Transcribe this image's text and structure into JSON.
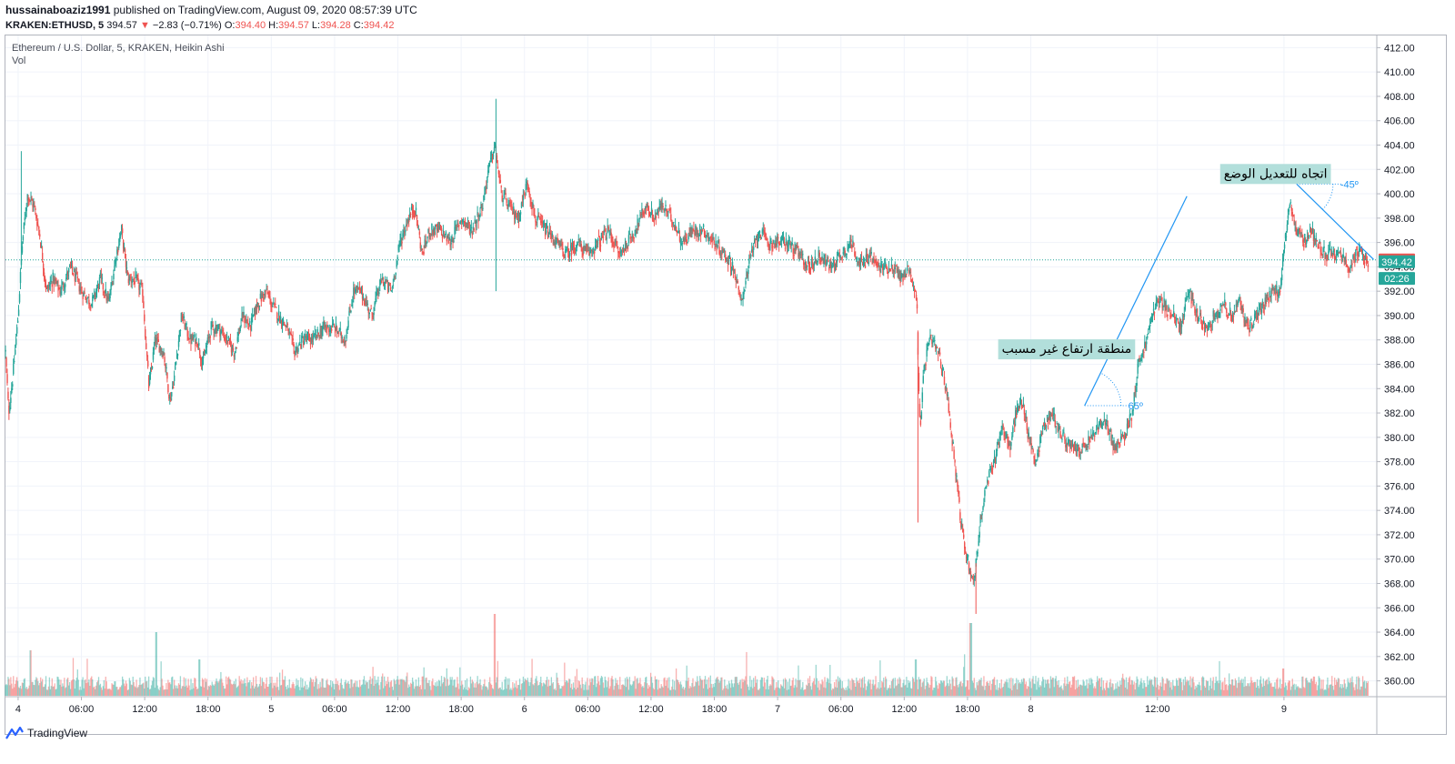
{
  "header": {
    "user": "hussainaboaziz1991",
    "published": "published on TradingView.com, August 09, 2020 08:57:39 UTC",
    "symbol": "KRAKEN:ETHUSD, 5",
    "last": "394.57",
    "arrow": "▼",
    "change": "−2.83 (−0.71%)",
    "o_label": "O:",
    "o_value": "394.40",
    "h_label": "H:",
    "h_value": "394.57",
    "l_label": "L:",
    "l_value": "394.28",
    "c_label": "C:",
    "c_value": "394.42"
  },
  "series_label": {
    "title": "Ethereum / U.S. Dollar, 5, KRAKEN, Heikin Ashi",
    "vol": "Vol"
  },
  "footer": {
    "brand": "TradingView"
  },
  "colors": {
    "up": "#26a69a",
    "down": "#ef5350",
    "line": "#2196f3",
    "note_bg": "#b2dfdb"
  },
  "chart_data": {
    "type": "candlestick",
    "ylim": [
      358.7,
      413
    ],
    "y_ticks": [
      "412.00",
      "410.00",
      "408.00",
      "406.00",
      "404.00",
      "402.00",
      "400.00",
      "398.00",
      "396.00",
      "394.00",
      "392.00",
      "390.00",
      "388.00",
      "386.00",
      "384.00",
      "382.00",
      "380.00",
      "378.00",
      "376.00",
      "374.00",
      "372.00",
      "370.00",
      "368.00",
      "366.00",
      "364.00",
      "362.00",
      "360.00"
    ],
    "x_ticks": [
      {
        "label": "4",
        "t": 0
      },
      {
        "label": "06:00",
        "t": 6
      },
      {
        "label": "12:00",
        "t": 12
      },
      {
        "label": "18:00",
        "t": 18
      },
      {
        "label": "5",
        "t": 24
      },
      {
        "label": "06:00",
        "t": 30
      },
      {
        "label": "12:00",
        "t": 36
      },
      {
        "label": "18:00",
        "t": 42
      },
      {
        "label": "6",
        "t": 48
      },
      {
        "label": "06:00",
        "t": 54
      },
      {
        "label": "12:00",
        "t": 60
      },
      {
        "label": "18:00",
        "t": 66
      },
      {
        "label": "7",
        "t": 72
      },
      {
        "label": "06:00",
        "t": 78
      },
      {
        "label": "12:00",
        "t": 84
      },
      {
        "label": "18:00",
        "t": 90
      },
      {
        "label": "8",
        "t": 96
      },
      {
        "label": "12:00",
        "t": 108
      },
      {
        "label": "9",
        "t": 120
      }
    ],
    "x_range_hours": [
      -1.2,
      128.8
    ],
    "price_path": [
      [
        -1.2,
        387
      ],
      [
        -0.9,
        382
      ],
      [
        -0.5,
        385
      ],
      [
        0,
        390
      ],
      [
        0.4,
        396
      ],
      [
        0.9,
        400
      ],
      [
        1.5,
        399
      ],
      [
        2,
        397
      ],
      [
        2.7,
        392
      ],
      [
        3.3,
        393
      ],
      [
        4,
        392
      ],
      [
        5,
        394
      ],
      [
        6,
        392
      ],
      [
        7,
        391
      ],
      [
        7.8,
        393
      ],
      [
        8.6,
        391
      ],
      [
        9.3,
        395
      ],
      [
        9.8,
        397
      ],
      [
        10.4,
        393
      ],
      [
        11,
        393
      ],
      [
        11.8,
        392
      ],
      [
        12.4,
        384
      ],
      [
        13,
        388
      ],
      [
        13.8,
        387
      ],
      [
        14.4,
        383
      ],
      [
        14.8,
        385
      ],
      [
        15.5,
        390
      ],
      [
        16.3,
        388
      ],
      [
        17,
        388
      ],
      [
        17.5,
        386
      ],
      [
        18.3,
        389
      ],
      [
        19,
        389
      ],
      [
        19.8,
        388
      ],
      [
        20.5,
        387
      ],
      [
        21.3,
        390
      ],
      [
        22,
        389
      ],
      [
        22.7,
        391
      ],
      [
        23.5,
        392
      ],
      [
        24,
        391
      ],
      [
        24.7,
        390
      ],
      [
        25.5,
        389
      ],
      [
        26.2,
        387
      ],
      [
        27,
        388
      ],
      [
        28,
        388
      ],
      [
        29,
        389
      ],
      [
        30,
        389
      ],
      [
        31,
        388
      ],
      [
        31.8,
        392
      ],
      [
        32.5,
        392
      ],
      [
        33.5,
        390
      ],
      [
        34.5,
        393
      ],
      [
        35.4,
        392
      ],
      [
        36.2,
        396
      ],
      [
        37,
        398
      ],
      [
        37.6,
        399
      ],
      [
        38.3,
        395
      ],
      [
        39,
        397
      ],
      [
        40,
        397
      ],
      [
        41,
        396
      ],
      [
        42,
        398
      ],
      [
        43,
        397
      ],
      [
        44,
        399
      ],
      [
        44.6,
        402
      ],
      [
        45.2,
        404
      ],
      [
        45.8,
        400
      ],
      [
        46.5,
        399
      ],
      [
        47.4,
        398
      ],
      [
        48.3,
        401
      ],
      [
        49,
        398
      ],
      [
        50,
        397
      ],
      [
        51,
        396
      ],
      [
        52,
        395
      ],
      [
        53,
        396
      ],
      [
        54,
        395
      ],
      [
        55,
        396
      ],
      [
        56,
        397
      ],
      [
        57,
        395
      ],
      [
        57.8,
        396
      ],
      [
        58.5,
        397
      ],
      [
        59.5,
        399
      ],
      [
        60.3,
        398
      ],
      [
        61,
        399
      ],
      [
        62,
        398
      ],
      [
        63,
        396
      ],
      [
        64,
        397
      ],
      [
        65,
        397
      ],
      [
        66,
        396
      ],
      [
        67,
        395
      ],
      [
        67.8,
        394
      ],
      [
        68.5,
        391
      ],
      [
        69.5,
        395
      ],
      [
        70.3,
        397
      ],
      [
        71,
        396
      ],
      [
        72,
        396
      ],
      [
        73,
        396
      ],
      [
        74,
        395
      ],
      [
        75,
        394
      ],
      [
        76,
        395
      ],
      [
        77,
        394
      ],
      [
        78,
        395
      ],
      [
        79,
        396
      ],
      [
        80,
        394
      ],
      [
        80.7,
        395
      ],
      [
        81.5,
        394
      ],
      [
        82.3,
        394
      ],
      [
        83,
        394
      ],
      [
        83.8,
        393
      ],
      [
        84.5,
        394
      ],
      [
        85.2,
        391
      ],
      [
        85.5,
        380
      ],
      [
        85.9,
        386
      ],
      [
        86.5,
        388
      ],
      [
        87.2,
        387
      ],
      [
        88,
        384
      ],
      [
        88.8,
        378
      ],
      [
        89.5,
        372
      ],
      [
        90,
        370
      ],
      [
        90.6,
        368
      ],
      [
        91.2,
        373
      ],
      [
        91.8,
        376
      ],
      [
        92.5,
        378
      ],
      [
        93.3,
        381
      ],
      [
        94,
        379
      ],
      [
        94.6,
        382
      ],
      [
        95.2,
        383
      ],
      [
        95.8,
        380
      ],
      [
        96.5,
        378
      ],
      [
        97.2,
        381
      ],
      [
        98,
        382
      ],
      [
        99,
        380
      ],
      [
        100,
        379
      ],
      [
        101,
        379
      ],
      [
        101.8,
        380
      ],
      [
        102.5,
        381
      ],
      [
        103.3,
        381
      ],
      [
        104,
        379
      ],
      [
        104.8,
        380
      ],
      [
        105.6,
        382
      ],
      [
        106.2,
        386
      ],
      [
        107,
        388
      ],
      [
        107.8,
        391
      ],
      [
        108.6,
        391
      ],
      [
        109.4,
        390
      ],
      [
        110.2,
        389
      ],
      [
        111,
        392
      ],
      [
        111.8,
        390
      ],
      [
        112.6,
        389
      ],
      [
        113.4,
        390
      ],
      [
        114.2,
        391
      ],
      [
        115,
        390
      ],
      [
        115.8,
        391
      ],
      [
        116.6,
        389
      ],
      [
        117.4,
        390
      ],
      [
        118.2,
        391
      ],
      [
        119,
        392
      ],
      [
        119.6,
        392
      ],
      [
        120.1,
        396
      ],
      [
        120.6,
        399
      ],
      [
        121.2,
        397
      ],
      [
        121.8,
        396
      ],
      [
        122.5,
        397
      ],
      [
        123.2,
        396
      ],
      [
        124,
        395
      ],
      [
        124.8,
        395
      ],
      [
        125.5,
        395
      ],
      [
        126.2,
        394
      ],
      [
        126.8,
        395
      ],
      [
        127.4,
        395
      ],
      [
        128,
        394.4
      ]
    ],
    "spikes": [
      {
        "t": 0.3,
        "high": 403.5
      },
      {
        "t": 45.3,
        "high": 407.8,
        "low": 392
      },
      {
        "t": 85.3,
        "low": 373
      },
      {
        "t": 90.8,
        "low": 365.5
      }
    ],
    "current_price_line": 394.57,
    "price_labels": [
      {
        "text": "394.57",
        "value": 394.57,
        "color": "#ef5350"
      },
      {
        "text": "394.42",
        "value": 394.42,
        "color": "#26a69a"
      },
      {
        "text": "02:26",
        "value": 393.05,
        "color": "#26a69a"
      }
    ],
    "annotations": [
      {
        "text": "منطقة ارتفاع غير مسبب",
        "t": 99.4,
        "value": 387.3
      },
      {
        "text": "اتجاه للتعديل الوضع",
        "t": 119.2,
        "value": 401.7
      }
    ],
    "trend_lines": [
      {
        "t1": 101.1,
        "v1": 382.6,
        "t2": 110.8,
        "v2": 399.8,
        "angle_label": "65º"
      },
      {
        "t1": 121.2,
        "v1": 400.8,
        "t2": 128.5,
        "v2": 394.6,
        "angle_label": "-45º"
      }
    ],
    "volume_peaks": [
      {
        "t": 1.2,
        "v": 5
      },
      {
        "t": 13.1,
        "v": 7
      },
      {
        "t": 17.2,
        "v": 4
      },
      {
        "t": 45.2,
        "v": 9
      },
      {
        "t": 85.1,
        "v": 4
      },
      {
        "t": 90.3,
        "v": 8
      },
      {
        "t": 119.9,
        "v": 3
      }
    ]
  }
}
